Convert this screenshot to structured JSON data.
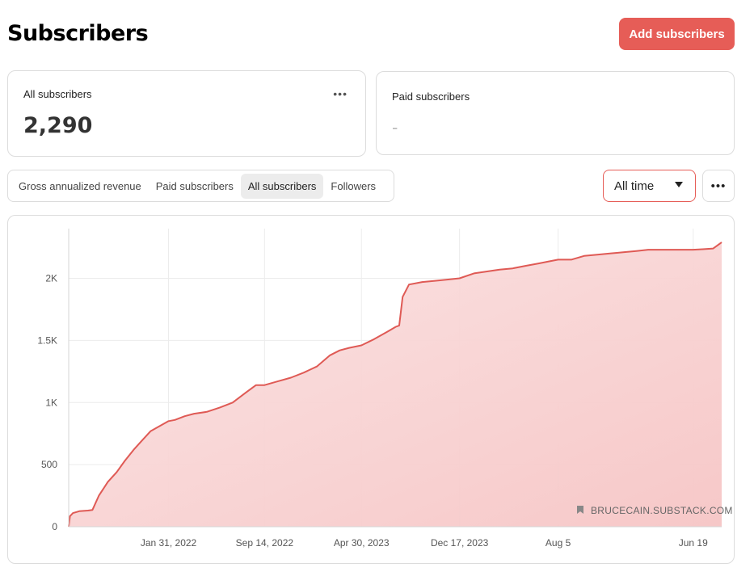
{
  "header": {
    "title": "Subscribers",
    "add_button_label": "Add subscribers"
  },
  "cards": {
    "all": {
      "label": "All subscribers",
      "value": "2,290",
      "menu_icon": "ellipsis-icon"
    },
    "paid": {
      "label": "Paid subscribers",
      "value": "-"
    }
  },
  "tabs": [
    {
      "label": "Gross annualized revenue",
      "active": false
    },
    {
      "label": "Paid subscribers",
      "active": false
    },
    {
      "label": "All subscribers",
      "active": true
    },
    {
      "label": "Followers",
      "active": false
    }
  ],
  "range": {
    "selected": "All time"
  },
  "more_icon": "ellipsis-icon",
  "colors": {
    "accent": "#e65d57",
    "line": "#df5a55",
    "fill": "#f8c9c9"
  },
  "chart_data": {
    "type": "area",
    "title": "",
    "xlabel": "",
    "ylabel": "",
    "ylim": [
      0,
      2400
    ],
    "y_ticks": [
      0,
      500,
      1000,
      1500,
      2000
    ],
    "y_tick_labels": [
      "0",
      "500",
      "1K",
      "1.5K",
      "2K"
    ],
    "x_tick_labels": [
      "Jan 31, 2022",
      "Sep 14, 2022",
      "Apr 30, 2023",
      "Dec 17, 2023",
      "Aug 5",
      "Jun 19"
    ],
    "grid": true,
    "watermark": "BRUCECAIN.SUBSTACK.COM",
    "series": [
      {
        "x": [
          "2021-06-10",
          "2021-06-13",
          "2021-06-20",
          "2021-07-05",
          "2021-07-25",
          "2021-08-05",
          "2021-08-20",
          "2021-09-10",
          "2021-10-01",
          "2021-10-20",
          "2021-11-10",
          "2021-12-01",
          "2021-12-20",
          "2022-01-31",
          "2022-02-15",
          "2022-03-10",
          "2022-04-01",
          "2022-05-01",
          "2022-06-01",
          "2022-07-01",
          "2022-08-01",
          "2022-08-25",
          "2022-09-14",
          "2022-10-15",
          "2022-11-15",
          "2022-12-15",
          "2023-01-15",
          "2023-02-15",
          "2023-03-10",
          "2023-04-01",
          "2023-04-30",
          "2023-05-30",
          "2023-06-30",
          "2023-07-20",
          "2023-07-28",
          "2023-08-05",
          "2023-08-20",
          "2023-09-20",
          "2023-10-20",
          "2023-11-20",
          "2023-12-17",
          "2024-01-20",
          "2024-02-20",
          "2024-03-20",
          "2024-04-20",
          "2024-05-20",
          "2024-06-20",
          "2024-07-20",
          "2024-08-05",
          "2024-09-05",
          "2024-10-05",
          "2024-11-05",
          "2024-12-05",
          "2025-01-05",
          "2025-02-05",
          "2025-03-05",
          "2025-04-05",
          "2025-05-05",
          "2025-06-05",
          "2025-06-19",
          "2025-07-15",
          "2025-08-05",
          "2025-08-25"
        ],
        "values": [
          0,
          85,
          110,
          125,
          130,
          135,
          250,
          360,
          440,
          530,
          620,
          700,
          770,
          850,
          860,
          890,
          910,
          925,
          960,
          1000,
          1080,
          1140,
          1140,
          1170,
          1200,
          1240,
          1290,
          1380,
          1420,
          1440,
          1460,
          1510,
          1570,
          1610,
          1620,
          1850,
          1950,
          1970,
          1980,
          1990,
          2000,
          2040,
          2055,
          2070,
          2080,
          2100,
          2120,
          2140,
          2150,
          2150,
          2180,
          2190,
          2200,
          2210,
          2220,
          2230,
          2230,
          2230,
          2230,
          2230,
          2235,
          2240,
          2290
        ]
      }
    ]
  }
}
